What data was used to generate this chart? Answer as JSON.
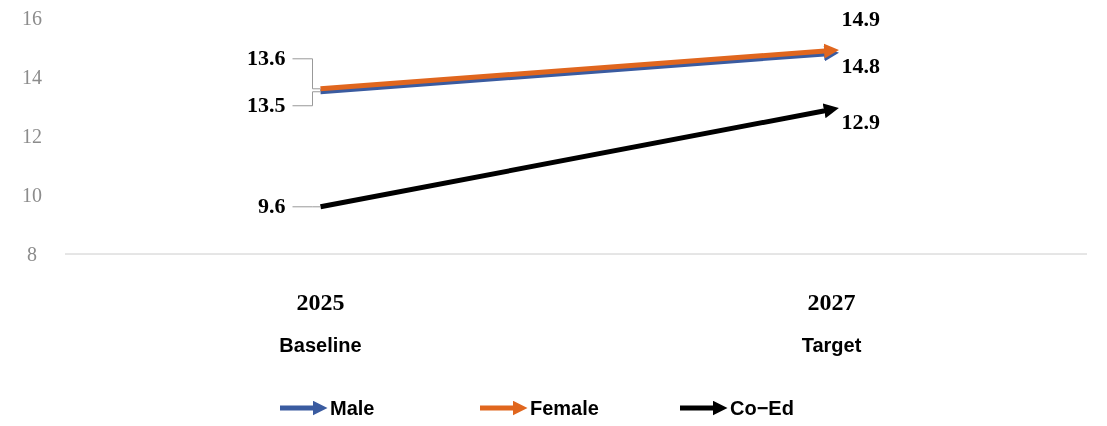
{
  "chart_data": {
    "type": "line",
    "categories": [
      "2025\nBaseline",
      "2027\nTarget"
    ],
    "series": [
      {
        "name": "Male",
        "color": "#3a5ba0",
        "values": [
          13.5,
          14.8
        ]
      },
      {
        "name": "Female",
        "color": "#e0661e",
        "values": [
          13.6,
          14.9
        ]
      },
      {
        "name": "Co−Ed",
        "color": "#000000",
        "values": [
          9.6,
          12.9
        ]
      }
    ],
    "ylim": [
      8,
      16
    ],
    "yticks": [
      8,
      10,
      12,
      14,
      16
    ],
    "grid": false,
    "legend": "bottom",
    "data_labels": true,
    "marker": "none",
    "line_style": "solid"
  }
}
